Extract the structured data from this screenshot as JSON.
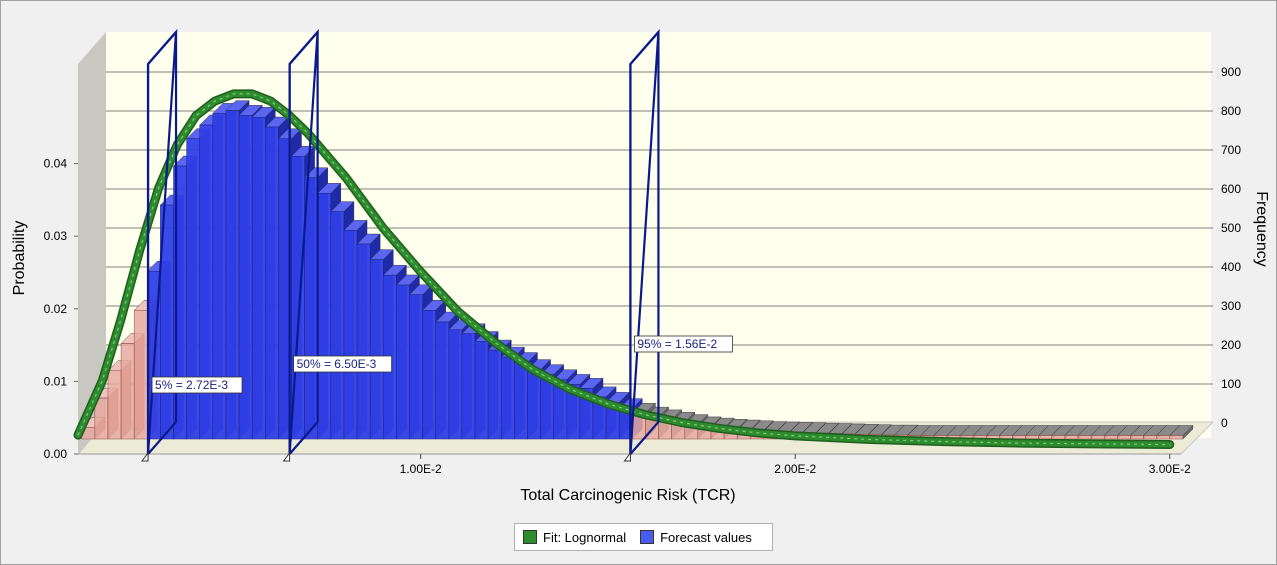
{
  "chart_data": {
    "type": "bar",
    "xlabel": "Total Carcinogenic Risk (TCR)",
    "ylabel": "Probability",
    "y2label": "Frequency",
    "xlim": [
      0.00085,
      0.0303
    ],
    "x_ticks": [
      {
        "value": 0.01,
        "label": "1.00E-2"
      },
      {
        "value": 0.02,
        "label": "2.00E-2"
      },
      {
        "value": 0.03,
        "label": "3.00E-2"
      }
    ],
    "y_ticks": [
      {
        "value": 0.0,
        "label": "0.00"
      },
      {
        "value": 0.01,
        "label": "0.01"
      },
      {
        "value": 0.02,
        "label": "0.02"
      },
      {
        "value": 0.03,
        "label": "0.03"
      },
      {
        "value": 0.04,
        "label": "0.04"
      }
    ],
    "y2_ticks": [
      {
        "value": 0,
        "label": "0"
      },
      {
        "value": 100,
        "label": "100"
      },
      {
        "value": 200,
        "label": "200"
      },
      {
        "value": 300,
        "label": "300"
      },
      {
        "value": 400,
        "label": "400"
      },
      {
        "value": 500,
        "label": "500"
      },
      {
        "value": 600,
        "label": "600"
      },
      {
        "value": 700,
        "label": "700"
      },
      {
        "value": 800,
        "label": "800"
      },
      {
        "value": 900,
        "label": "900"
      }
    ],
    "y2lim": [
      0,
      1000
    ],
    "grid": true,
    "bin_width": 0.00035,
    "bin_start": 0.00095,
    "frequencies": [
      30,
      105,
      175,
      245,
      330,
      430,
      600,
      700,
      770,
      805,
      835,
      842,
      830,
      825,
      800,
      770,
      725,
      670,
      630,
      583,
      535,
      500,
      460,
      420,
      395,
      370,
      330,
      300,
      280,
      270,
      250,
      228,
      210,
      196,
      178,
      165,
      152,
      140,
      130,
      108,
      94,
      78,
      66,
      56,
      49,
      43,
      37,
      31,
      28,
      25,
      23,
      21,
      19,
      18,
      17,
      16,
      15,
      14,
      13,
      12,
      11,
      10,
      10,
      9,
      9,
      9,
      9,
      9,
      9,
      9,
      9,
      9,
      9,
      9,
      9,
      9,
      9,
      9,
      9,
      9,
      9,
      9,
      9,
      9
    ],
    "series": [
      {
        "name": "Fit: Lognormal",
        "type": "line",
        "color": "#2e8b2e",
        "x": [
          0.00085,
          0.0015,
          0.002,
          0.0025,
          0.003,
          0.0035,
          0.004,
          0.0045,
          0.005,
          0.0055,
          0.006,
          0.0065,
          0.007,
          0.008,
          0.009,
          0.01,
          0.011,
          0.012,
          0.013,
          0.014,
          0.015,
          0.016,
          0.017,
          0.018,
          0.019,
          0.02,
          0.022,
          0.024,
          0.026,
          0.028,
          0.03
        ],
        "y": [
          0.0015,
          0.009,
          0.0175,
          0.027,
          0.0355,
          0.0415,
          0.0455,
          0.0475,
          0.0485,
          0.0485,
          0.0475,
          0.0455,
          0.043,
          0.037,
          0.03,
          0.024,
          0.0185,
          0.0142,
          0.0105,
          0.0078,
          0.0058,
          0.0043,
          0.0032,
          0.0024,
          0.0018,
          0.0014,
          0.0009,
          0.0006,
          0.0004,
          0.0003,
          0.0002
        ]
      },
      {
        "name": "Forecast values",
        "type": "bar",
        "color": "#2f3fe6"
      }
    ],
    "percentiles": [
      {
        "x": 0.00272,
        "label": "5% = 2.72E-3"
      },
      {
        "x": 0.0065,
        "label": "50% = 6.50E-3"
      },
      {
        "x": 0.0156,
        "label": "95% = 1.56E-2"
      }
    ],
    "certainty_range": [
      0.00272,
      0.0156
    ],
    "legend_position": "bottom-center"
  },
  "colors": {
    "in_range": "#2f3fe6",
    "out_range": "#e8a9a0",
    "tail_side": "#6b6b6b",
    "fit_line": "#2e8b2e",
    "plot_bg": "#ffffee",
    "marker": "#0a1a8c"
  }
}
